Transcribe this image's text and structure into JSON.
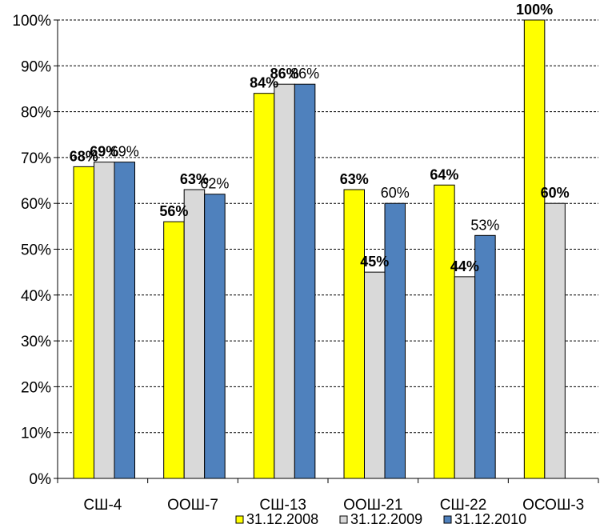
{
  "chart_data": {
    "type": "bar",
    "categories": [
      "СШ-4",
      "ООШ-7",
      "СШ-13",
      "ООШ-21",
      "СШ-22",
      "ОСОШ-3"
    ],
    "series": [
      {
        "name": "31.12.2008",
        "color": "#FFFF00",
        "values": [
          68,
          56,
          84,
          63,
          64,
          100
        ],
        "labels": [
          "68%",
          "56%",
          "84%",
          "63%",
          "64%",
          "100%"
        ],
        "label_bold": true
      },
      {
        "name": "31.12.2009",
        "color": "#D9D9D9",
        "values": [
          69,
          63,
          86,
          45,
          44,
          60
        ],
        "labels": [
          "69%",
          "63%",
          "86%",
          "45%",
          "44%",
          "60%"
        ],
        "label_bold": true
      },
      {
        "name": "31.12.2010",
        "color": "#4F81BD",
        "values": [
          69,
          62,
          86,
          60,
          53,
          null
        ],
        "labels": [
          "69%",
          "62%",
          "86%",
          "60%",
          "53%",
          null
        ],
        "label_bold": false
      }
    ],
    "ylim": [
      0,
      100
    ],
    "yticks": [
      0,
      10,
      20,
      30,
      40,
      50,
      60,
      70,
      80,
      90,
      100
    ],
    "ytick_labels": [
      "0%",
      "10%",
      "20%",
      "30%",
      "40%",
      "50%",
      "60%",
      "70%",
      "80%",
      "90%",
      "100%"
    ],
    "grid": "horizontal-dashed",
    "legend_position": "bottom",
    "title": "",
    "xlabel": "",
    "ylabel": ""
  }
}
